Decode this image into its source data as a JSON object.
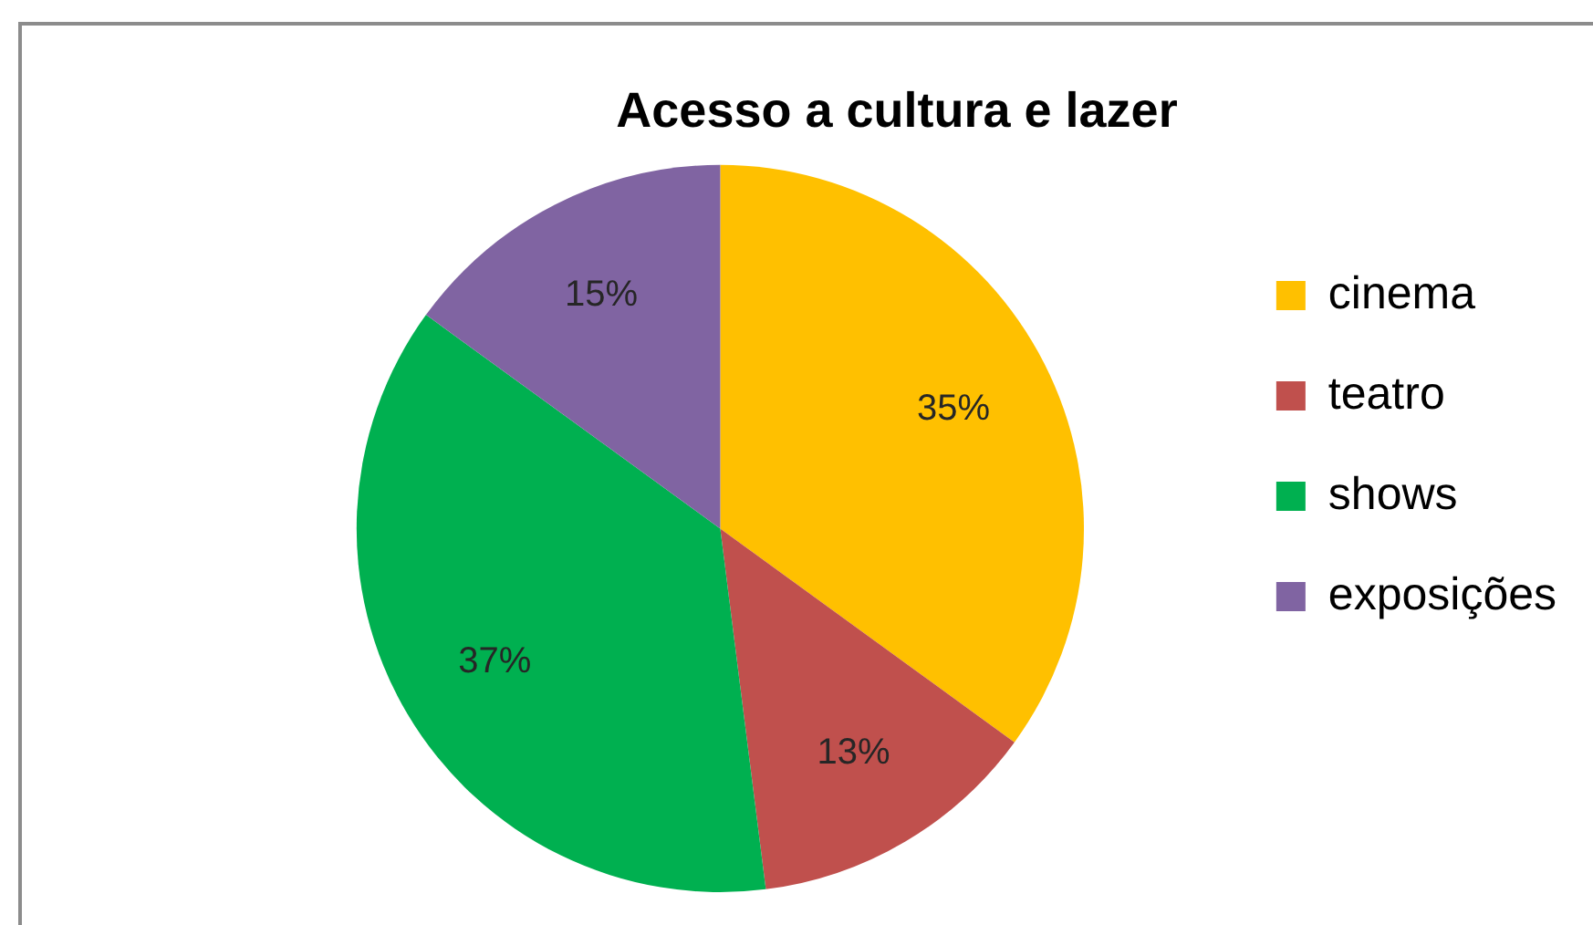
{
  "chart_data": {
    "type": "pie",
    "title": "Acesso a cultura e lazer",
    "categories": [
      "cinema",
      "teatro",
      "shows",
      "exposições"
    ],
    "values": [
      35,
      13,
      37,
      15
    ],
    "value_labels": [
      "35%",
      "13%",
      "37%",
      "15%"
    ],
    "colors": [
      "#ffc000",
      "#c0504d",
      "#00b050",
      "#8064a2"
    ],
    "legend": "right"
  }
}
